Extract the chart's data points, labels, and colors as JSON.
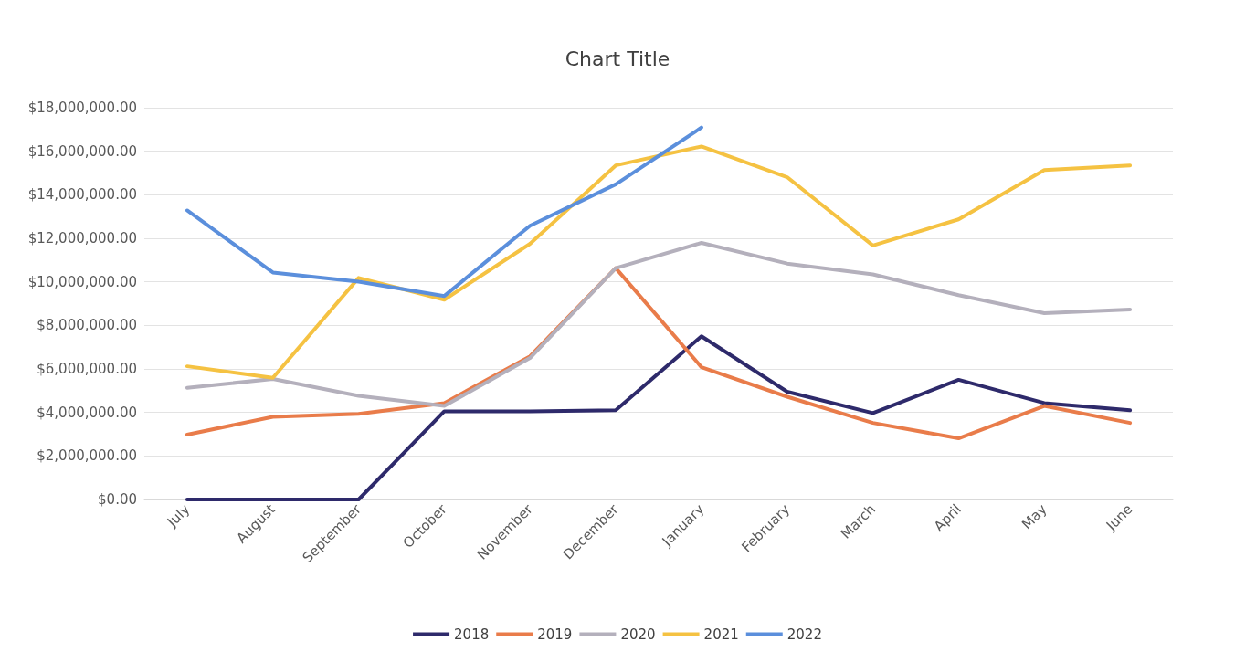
{
  "chart_data": {
    "type": "line",
    "title": "Chart Title",
    "categories": [
      "July",
      "August",
      "September",
      "October",
      "November",
      "December",
      "January",
      "February",
      "March",
      "April",
      "May",
      "June"
    ],
    "series": [
      {
        "name": "2018",
        "color": "#2e2a6b",
        "values": [
          0,
          0,
          0,
          4050000,
          4050000,
          4100000,
          7500000,
          4950000,
          3970000,
          5500000,
          4430000,
          4100000
        ]
      },
      {
        "name": "2019",
        "color": "#e97c4a",
        "values": [
          2980000,
          3800000,
          3930000,
          4430000,
          6580000,
          10630000,
          6080000,
          4720000,
          3520000,
          2810000,
          4300000,
          3520000
        ]
      },
      {
        "name": "2020",
        "color": "#b4b0bc",
        "values": [
          5130000,
          5540000,
          4760000,
          4300000,
          6500000,
          10630000,
          11790000,
          10840000,
          10340000,
          9390000,
          8560000,
          8730000
        ]
      },
      {
        "name": "2021",
        "color": "#f5c242",
        "values": [
          6120000,
          5590000,
          10180000,
          9180000,
          11750000,
          15350000,
          16220000,
          14810000,
          11670000,
          12870000,
          15140000,
          15350000
        ]
      },
      {
        "name": "2022",
        "color": "#5b8fdc",
        "values": [
          13280000,
          10430000,
          10010000,
          9350000,
          12580000,
          14480000,
          17090000,
          null,
          null,
          null,
          null,
          null
        ]
      }
    ],
    "ylim": [
      0,
      18000000
    ],
    "yticks": [
      {
        "value": 0,
        "label": "$0.00"
      },
      {
        "value": 2000000,
        "label": "$2,000,000.00"
      },
      {
        "value": 4000000,
        "label": "$4,000,000.00"
      },
      {
        "value": 6000000,
        "label": "$6,000,000.00"
      },
      {
        "value": 8000000,
        "label": "$8,000,000.00"
      },
      {
        "value": 10000000,
        "label": "$10,000,000.00"
      },
      {
        "value": 12000000,
        "label": "$12,000,000.00"
      },
      {
        "value": 14000000,
        "label": "$14,000,000.00"
      },
      {
        "value": 16000000,
        "label": "$16,000,000.00"
      },
      {
        "value": 18000000,
        "label": "$18,000,000.00"
      }
    ],
    "grid": "y",
    "legend": "bottom",
    "marker": "none",
    "line_style": "solid"
  }
}
